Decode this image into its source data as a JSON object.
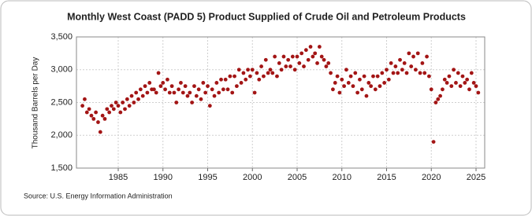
{
  "chart_data": {
    "type": "scatter",
    "title": "Monthly West Coast (PADD 5) Product Supplied of Crude Oil and Petroleum Products",
    "y_label": "Thousand Barrels per Day",
    "source": "Source: U.S. Energy Information Administration",
    "xlim": [
      1980.33,
      2025.97
    ],
    "xticks": [
      1985,
      1990,
      1995,
      2000,
      2005,
      2010,
      2015,
      2020,
      2025
    ],
    "ylim": [
      1500,
      3500
    ],
    "yticks": [
      {
        "value": 1500,
        "label": "1,500"
      },
      {
        "value": 2000,
        "label": "2,000"
      },
      {
        "value": 2500,
        "label": "2,500"
      },
      {
        "value": 3000,
        "label": "3,000"
      },
      {
        "value": 3500,
        "label": "3,500"
      }
    ],
    "grid": true,
    "series": [
      {
        "color": "#a31515",
        "x": [
          1981,
          1981.25,
          1981.5,
          1981.75,
          1982,
          1982.25,
          1982.5,
          1982.75,
          1983,
          1983.25,
          1983.5,
          1983.75,
          1984,
          1984.25,
          1984.5,
          1984.75,
          1985,
          1985.25,
          1985.5,
          1985.75,
          1986,
          1986.25,
          1986.5,
          1986.75,
          1987,
          1987.25,
          1987.5,
          1987.75,
          1988,
          1988.25,
          1988.5,
          1988.75,
          1989,
          1989.25,
          1989.5,
          1989.75,
          1990,
          1990.25,
          1990.5,
          1990.75,
          1991,
          1991.25,
          1991.5,
          1991.75,
          1992,
          1992.25,
          1992.5,
          1992.75,
          1993,
          1993.25,
          1993.5,
          1993.75,
          1994,
          1994.25,
          1994.5,
          1994.75,
          1995,
          1995.25,
          1995.5,
          1995.75,
          1996,
          1996.25,
          1996.5,
          1996.75,
          1997,
          1997.25,
          1997.5,
          1997.75,
          1998,
          1998.25,
          1998.5,
          1998.75,
          1999,
          1999.25,
          1999.5,
          1999.75,
          2000,
          2000.25,
          2000.5,
          2000.75,
          2001,
          2001.25,
          2001.5,
          2001.75,
          2002,
          2002.25,
          2002.5,
          2002.75,
          2003,
          2003.25,
          2003.5,
          2003.75,
          2004,
          2004.25,
          2004.5,
          2004.75,
          2005,
          2005.25,
          2005.5,
          2005.75,
          2006,
          2006.25,
          2006.5,
          2006.75,
          2007,
          2007.25,
          2007.5,
          2007.75,
          2008,
          2008.25,
          2008.5,
          2008.75,
          2009,
          2009.25,
          2009.5,
          2009.75,
          2010,
          2010.25,
          2010.5,
          2010.75,
          2011,
          2011.25,
          2011.5,
          2011.75,
          2012,
          2012.25,
          2012.5,
          2012.75,
          2013,
          2013.25,
          2013.5,
          2013.75,
          2014,
          2014.25,
          2014.5,
          2014.75,
          2015,
          2015.25,
          2015.5,
          2015.75,
          2016,
          2016.25,
          2016.5,
          2016.75,
          2017,
          2017.25,
          2017.5,
          2017.75,
          2018,
          2018.25,
          2018.5,
          2018.75,
          2019,
          2019.25,
          2019.5,
          2019.75,
          2020,
          2020.25,
          2020.5,
          2020.75,
          2021,
          2021.25,
          2021.5,
          2021.75,
          2022,
          2022.25,
          2022.5,
          2022.75,
          2023,
          2023.25,
          2023.5,
          2023.75,
          2024,
          2024.25,
          2024.5,
          2024.75,
          2025,
          2025.25
        ],
        "values": [
          2450,
          2550,
          2350,
          2400,
          2300,
          2250,
          2350,
          2200,
          2050,
          2300,
          2250,
          2400,
          2350,
          2450,
          2400,
          2500,
          2450,
          2350,
          2500,
          2400,
          2550,
          2450,
          2600,
          2500,
          2650,
          2550,
          2700,
          2600,
          2750,
          2650,
          2800,
          2700,
          2700,
          2650,
          2950,
          2750,
          2800,
          2700,
          2850,
          2650,
          2750,
          2650,
          2500,
          2700,
          2800,
          2650,
          2750,
          2600,
          2650,
          2500,
          2750,
          2600,
          2700,
          2550,
          2800,
          2650,
          2750,
          2450,
          2700,
          2600,
          2800,
          2650,
          2850,
          2700,
          2850,
          2700,
          2900,
          2650,
          2900,
          2750,
          3000,
          2800,
          2950,
          2850,
          3000,
          2900,
          3000,
          2650,
          2950,
          2850,
          3050,
          2900,
          3150,
          2950,
          3000,
          2950,
          3200,
          2900,
          3100,
          3000,
          3200,
          3050,
          3150,
          3050,
          3200,
          3000,
          3200,
          3100,
          3250,
          3050,
          3300,
          3150,
          3350,
          3200,
          3250,
          3100,
          3350,
          3200,
          3150,
          3050,
          3100,
          2950,
          2700,
          2800,
          2900,
          2650,
          2850,
          2750,
          3000,
          2800,
          2900,
          2750,
          2950,
          2650,
          2850,
          2700,
          2900,
          2600,
          2800,
          2750,
          2900,
          2700,
          2900,
          2750,
          2950,
          2800,
          3000,
          2850,
          3100,
          2950,
          3050,
          2950,
          3150,
          3000,
          3100,
          2950,
          3250,
          3050,
          3200,
          3000,
          3250,
          2950,
          3100,
          2950,
          3200,
          2900,
          2700,
          1900,
          2500,
          2550,
          2600,
          2700,
          2850,
          2800,
          2900,
          2750,
          3000,
          2800,
          2950,
          2750,
          2900,
          2800,
          2850,
          2700,
          2950,
          2800,
          2750,
          2650
        ]
      }
    ]
  }
}
